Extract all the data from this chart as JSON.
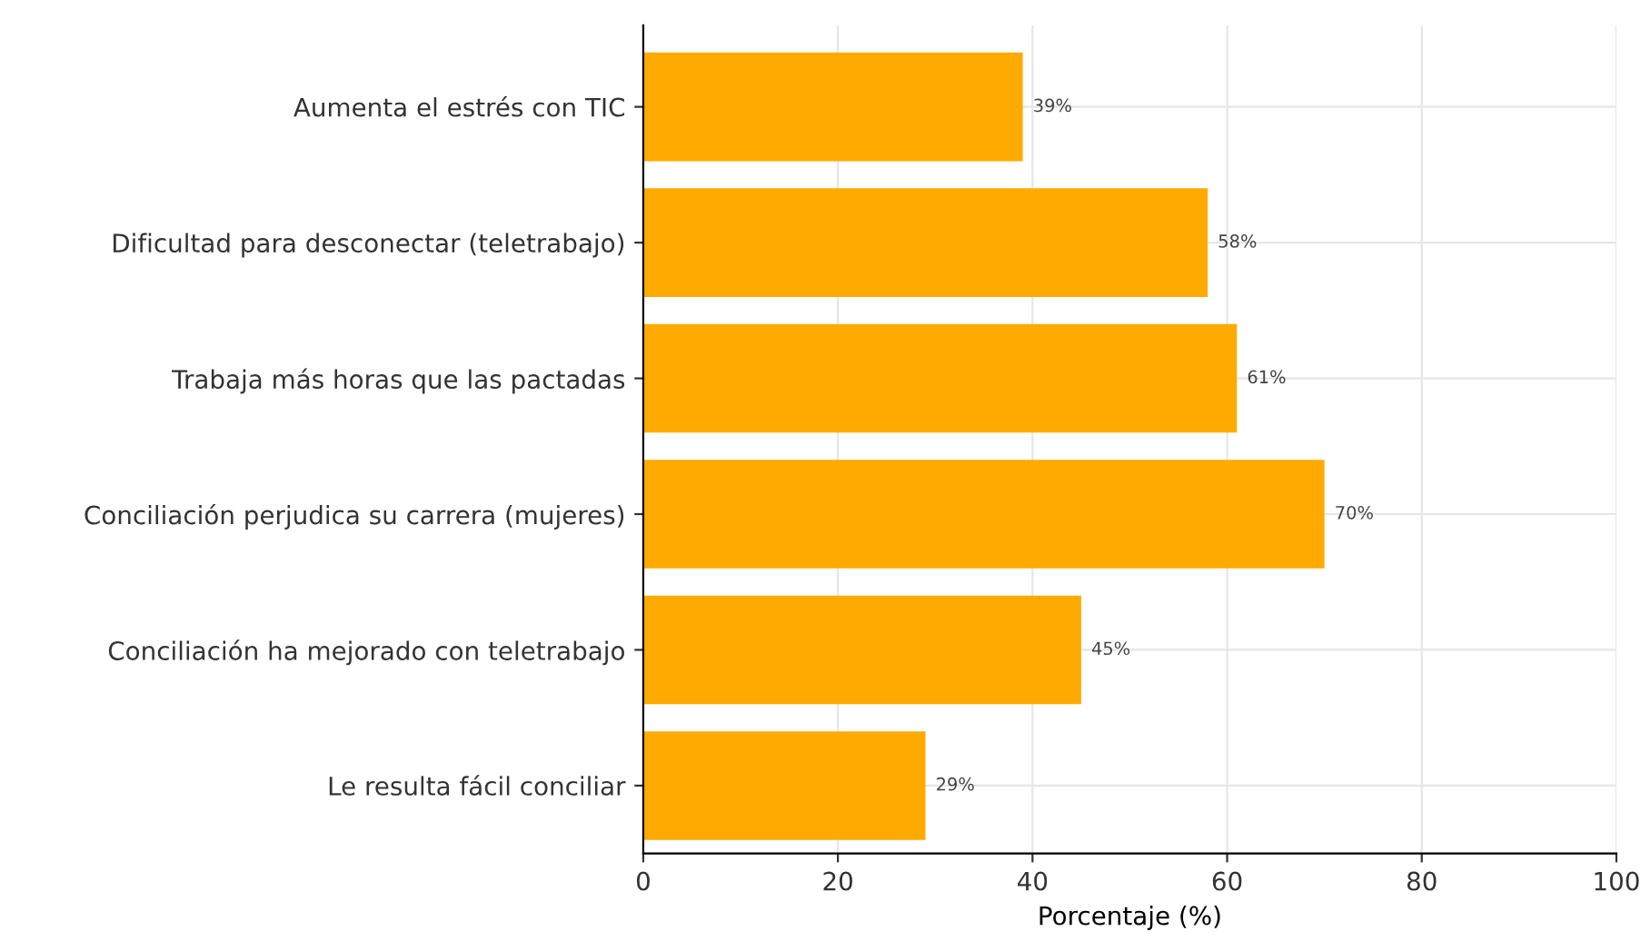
{
  "chart_data": {
    "type": "bar",
    "orientation": "horizontal",
    "xlabel": "Porcentaje (%)",
    "categories": [
      "Aumenta el estrés con TIC",
      "Dificultad para desconectar (teletrabajo)",
      "Trabaja más horas que las pactadas",
      "Conciliación perjudica su carrera (mujeres)",
      "Conciliación ha mejorado con teletrabajo",
      "Le resulta fácil conciliar"
    ],
    "values": [
      39,
      58,
      61,
      70,
      45,
      29
    ],
    "value_labels": [
      "39%",
      "58%",
      "61%",
      "70%",
      "45%",
      "29%"
    ],
    "color": "#ffaa00",
    "xlim": [
      0,
      100
    ],
    "xticks": [
      0,
      20,
      40,
      60,
      80,
      100
    ],
    "grid": true
  }
}
